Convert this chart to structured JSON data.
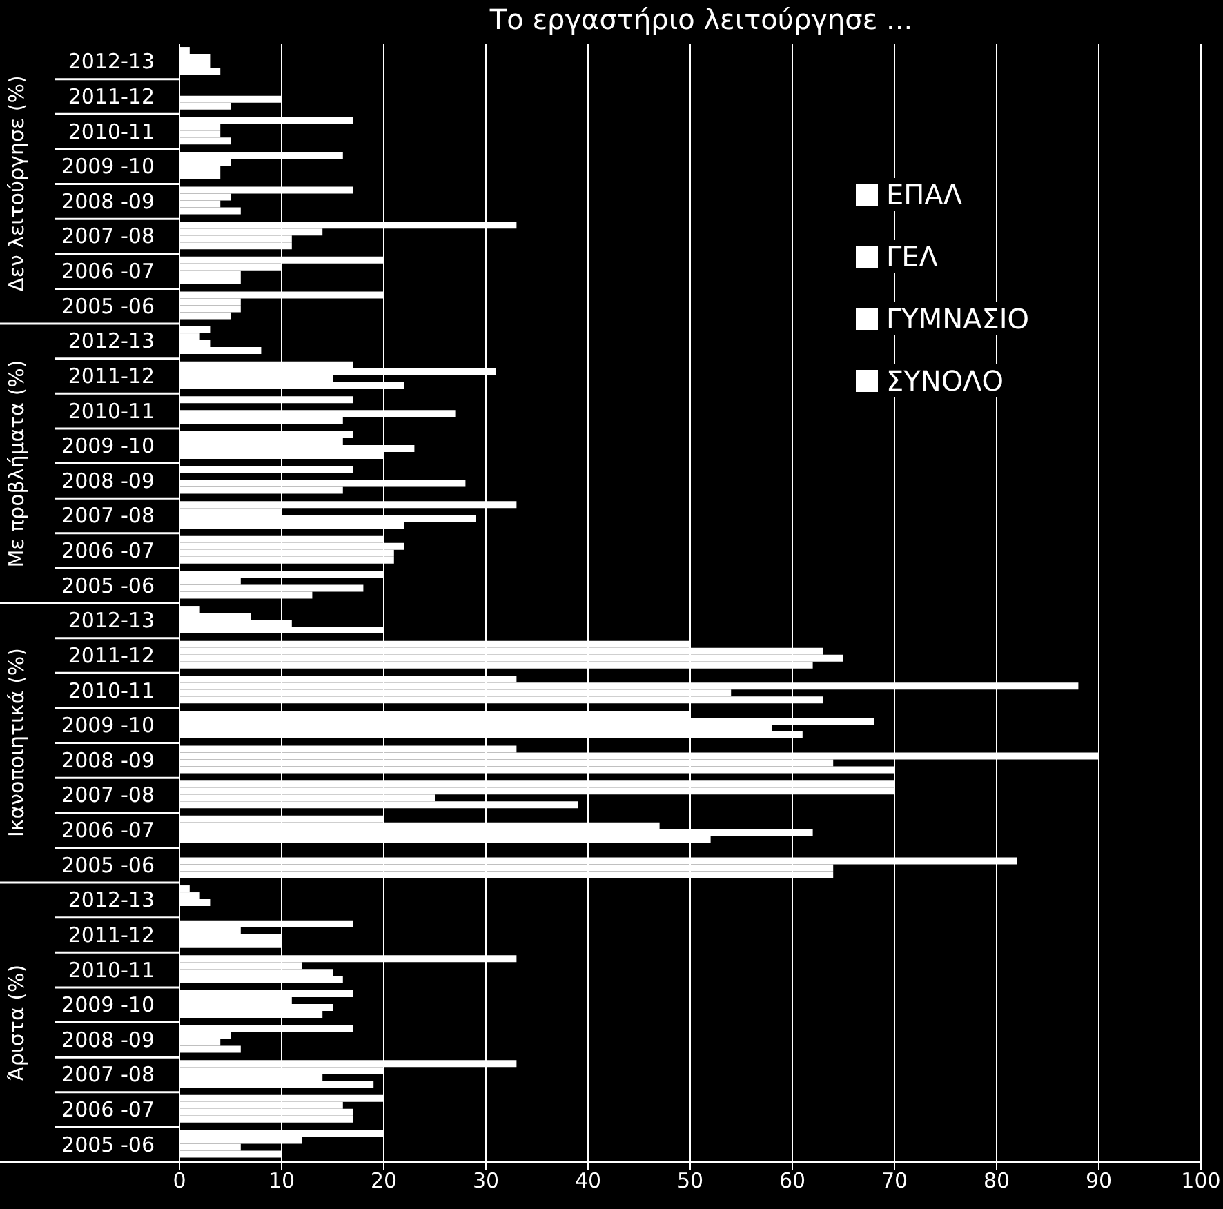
{
  "chart_data": {
    "type": "bar",
    "orientation": "horizontal",
    "title": "Το εργαστήριο λειτούργησε ...",
    "categories": [
      "2012-13",
      "2011-12",
      "2010-11",
      "2009 -10",
      "2008 -09",
      "2007 -08",
      "2006 -07",
      "2005 -06",
      "2012-13",
      "2011-12",
      "2010-11",
      "2009 -10",
      "2008 -09",
      "2007 -08",
      "2006 -07",
      "2005 -06",
      "2012-13",
      "2011-12",
      "2010-11",
      "2009 -10",
      "2008 -09",
      "2007 -08",
      "2006 -07",
      "2005 -06",
      "2012-13",
      "2011-12",
      "2010-11",
      "2009 -10",
      "2008 -09",
      "2007 -08",
      "2006 -07",
      "2005 -06"
    ],
    "annotations": [
      "Δεν λειτούργησε (%)",
      "Με προβλήματα (%)",
      "Ικανοποιητικά (%)",
      "Άριστα (%)"
    ],
    "series": [
      {
        "name": "ΕΠΑΛ",
        "color": "#ffffff",
        "values": [
          1,
          0,
          17,
          16,
          17,
          33,
          20,
          20,
          3,
          17,
          17,
          17,
          17,
          33,
          20,
          20,
          2,
          50,
          33,
          50,
          33,
          70,
          20,
          0,
          1,
          17,
          33,
          17,
          17,
          33,
          20,
          20
        ]
      },
      {
        "name": "ΓΕΛ",
        "color": "#ffffff",
        "values": [
          3,
          0,
          4,
          5,
          5,
          14,
          10,
          6,
          2,
          31,
          0,
          16,
          0,
          10,
          22,
          6,
          7,
          63,
          88,
          68,
          90,
          70,
          47,
          82,
          2,
          6,
          12,
          11,
          5,
          20,
          16,
          12
        ]
      },
      {
        "name": "ΓΥΜΝΑΣΙΟ",
        "color": "#ffffff",
        "values": [
          3,
          10,
          4,
          4,
          4,
          11,
          6,
          6,
          3,
          15,
          27,
          23,
          28,
          29,
          21,
          18,
          11,
          65,
          54,
          58,
          64,
          25,
          62,
          64,
          3,
          10,
          15,
          15,
          4,
          14,
          17,
          6
        ]
      },
      {
        "name": "ΣΥΝΟΛΟ",
        "color": "#ffffff",
        "values": [
          4,
          5,
          5,
          4,
          6,
          11,
          6,
          5,
          8,
          22,
          16,
          20,
          16,
          22,
          21,
          13,
          20,
          62,
          63,
          61,
          70,
          39,
          52,
          64,
          0,
          10,
          16,
          14,
          6,
          19,
          17,
          10
        ]
      }
    ],
    "xlim": [
      0,
      100
    ],
    "xticks": [
      0,
      10,
      20,
      30,
      40,
      50,
      60,
      70,
      80,
      90,
      100
    ],
    "grid": "x",
    "legend": "top right"
  }
}
